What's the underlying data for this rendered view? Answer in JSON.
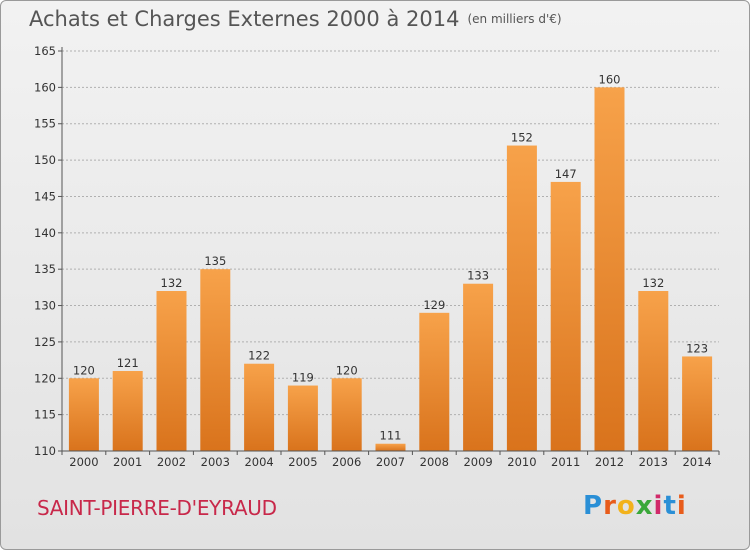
{
  "header": {
    "title": "Achats et Charges Externes 2000 à 2014",
    "unit": "(en milliers d'€)"
  },
  "footer": {
    "commune": "SAINT-PIERRE-D'EYRAUD",
    "logo_text": "Proxiti"
  },
  "colors": {
    "bar_light": "#f7a24a",
    "bar_dark": "#d9731c",
    "grid": "#b0b0b0",
    "commune": "#c8284a"
  },
  "chart_data": {
    "type": "bar",
    "title": "Achats et Charges Externes 2000 à 2014",
    "subtitle": "(en milliers d'€)",
    "xlabel": "",
    "ylabel": "",
    "categories": [
      "2000",
      "2001",
      "2002",
      "2003",
      "2004",
      "2005",
      "2006",
      "2007",
      "2008",
      "2009",
      "2010",
      "2011",
      "2012",
      "2013",
      "2014"
    ],
    "values": [
      120,
      121,
      132,
      135,
      122,
      119,
      120,
      111,
      129,
      133,
      152,
      147,
      160,
      132,
      123
    ],
    "ylim": [
      110,
      165
    ],
    "yticks": [
      110,
      115,
      120,
      125,
      130,
      135,
      140,
      145,
      150,
      155,
      160,
      165
    ],
    "grid": true,
    "legend": "none"
  }
}
